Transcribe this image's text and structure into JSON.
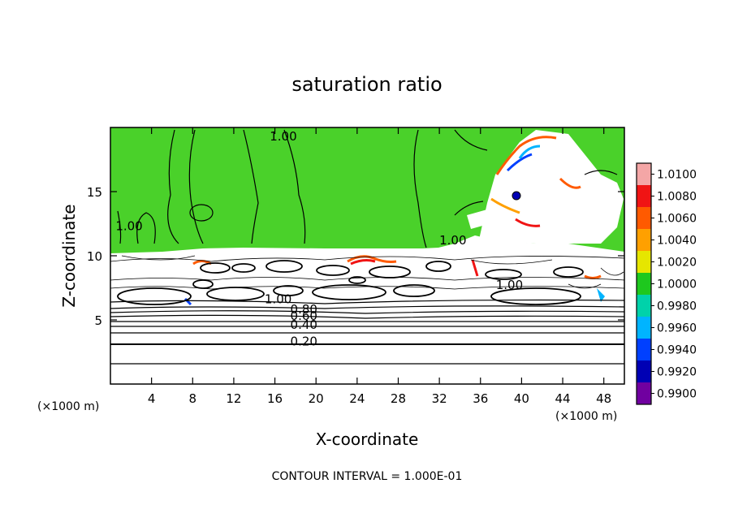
{
  "chart_data": {
    "type": "heatmap",
    "title": "saturation ratio",
    "xlabel": "X-coordinate",
    "ylabel": "Z-coordinate",
    "x_unit_left": "(×1000 m)",
    "x_unit_right": "(×1000 m)",
    "footer": "CONTOUR INTERVAL = 1.000E-01",
    "xlim": [
      0,
      50
    ],
    "ylim": [
      0,
      20
    ],
    "x_ticks": [
      4,
      8,
      12,
      16,
      20,
      24,
      28,
      32,
      36,
      40,
      44,
      48
    ],
    "y_ticks": [
      5,
      10,
      15
    ],
    "color_levels": [
      "1.0100",
      "1.0080",
      "1.0060",
      "1.0040",
      "1.0020",
      "1.0000",
      "0.9980",
      "0.9960",
      "0.9940",
      "0.9920",
      "0.9900"
    ],
    "colors": [
      "#f4a6a6",
      "#f01414",
      "#ff5a00",
      "#ffa000",
      "#e6e600",
      "#1ec81e",
      "#00d2aa",
      "#00b4ff",
      "#0040ff",
      "#0000b4",
      "#7000a0"
    ],
    "fill_green": "#4ad12a",
    "contour_labels": [
      {
        "text": "1.00",
        "x": 15.5,
        "z": 19.0
      },
      {
        "text": "1.00",
        "x": 0.5,
        "z": 12.0
      },
      {
        "text": "1.00",
        "x": 32.0,
        "z": 10.9
      },
      {
        "text": "1.00",
        "x": 37.5,
        "z": 7.4
      },
      {
        "text": "1.00",
        "x": 15.0,
        "z": 6.3
      },
      {
        "text": "0.80",
        "x": 17.5,
        "z": 5.5
      },
      {
        "text": "0.60",
        "x": 17.5,
        "z": 5.0
      },
      {
        "text": "0.40",
        "x": 17.5,
        "z": 4.3
      },
      {
        "text": "0.20",
        "x": 17.5,
        "z": 3.0
      }
    ]
  }
}
